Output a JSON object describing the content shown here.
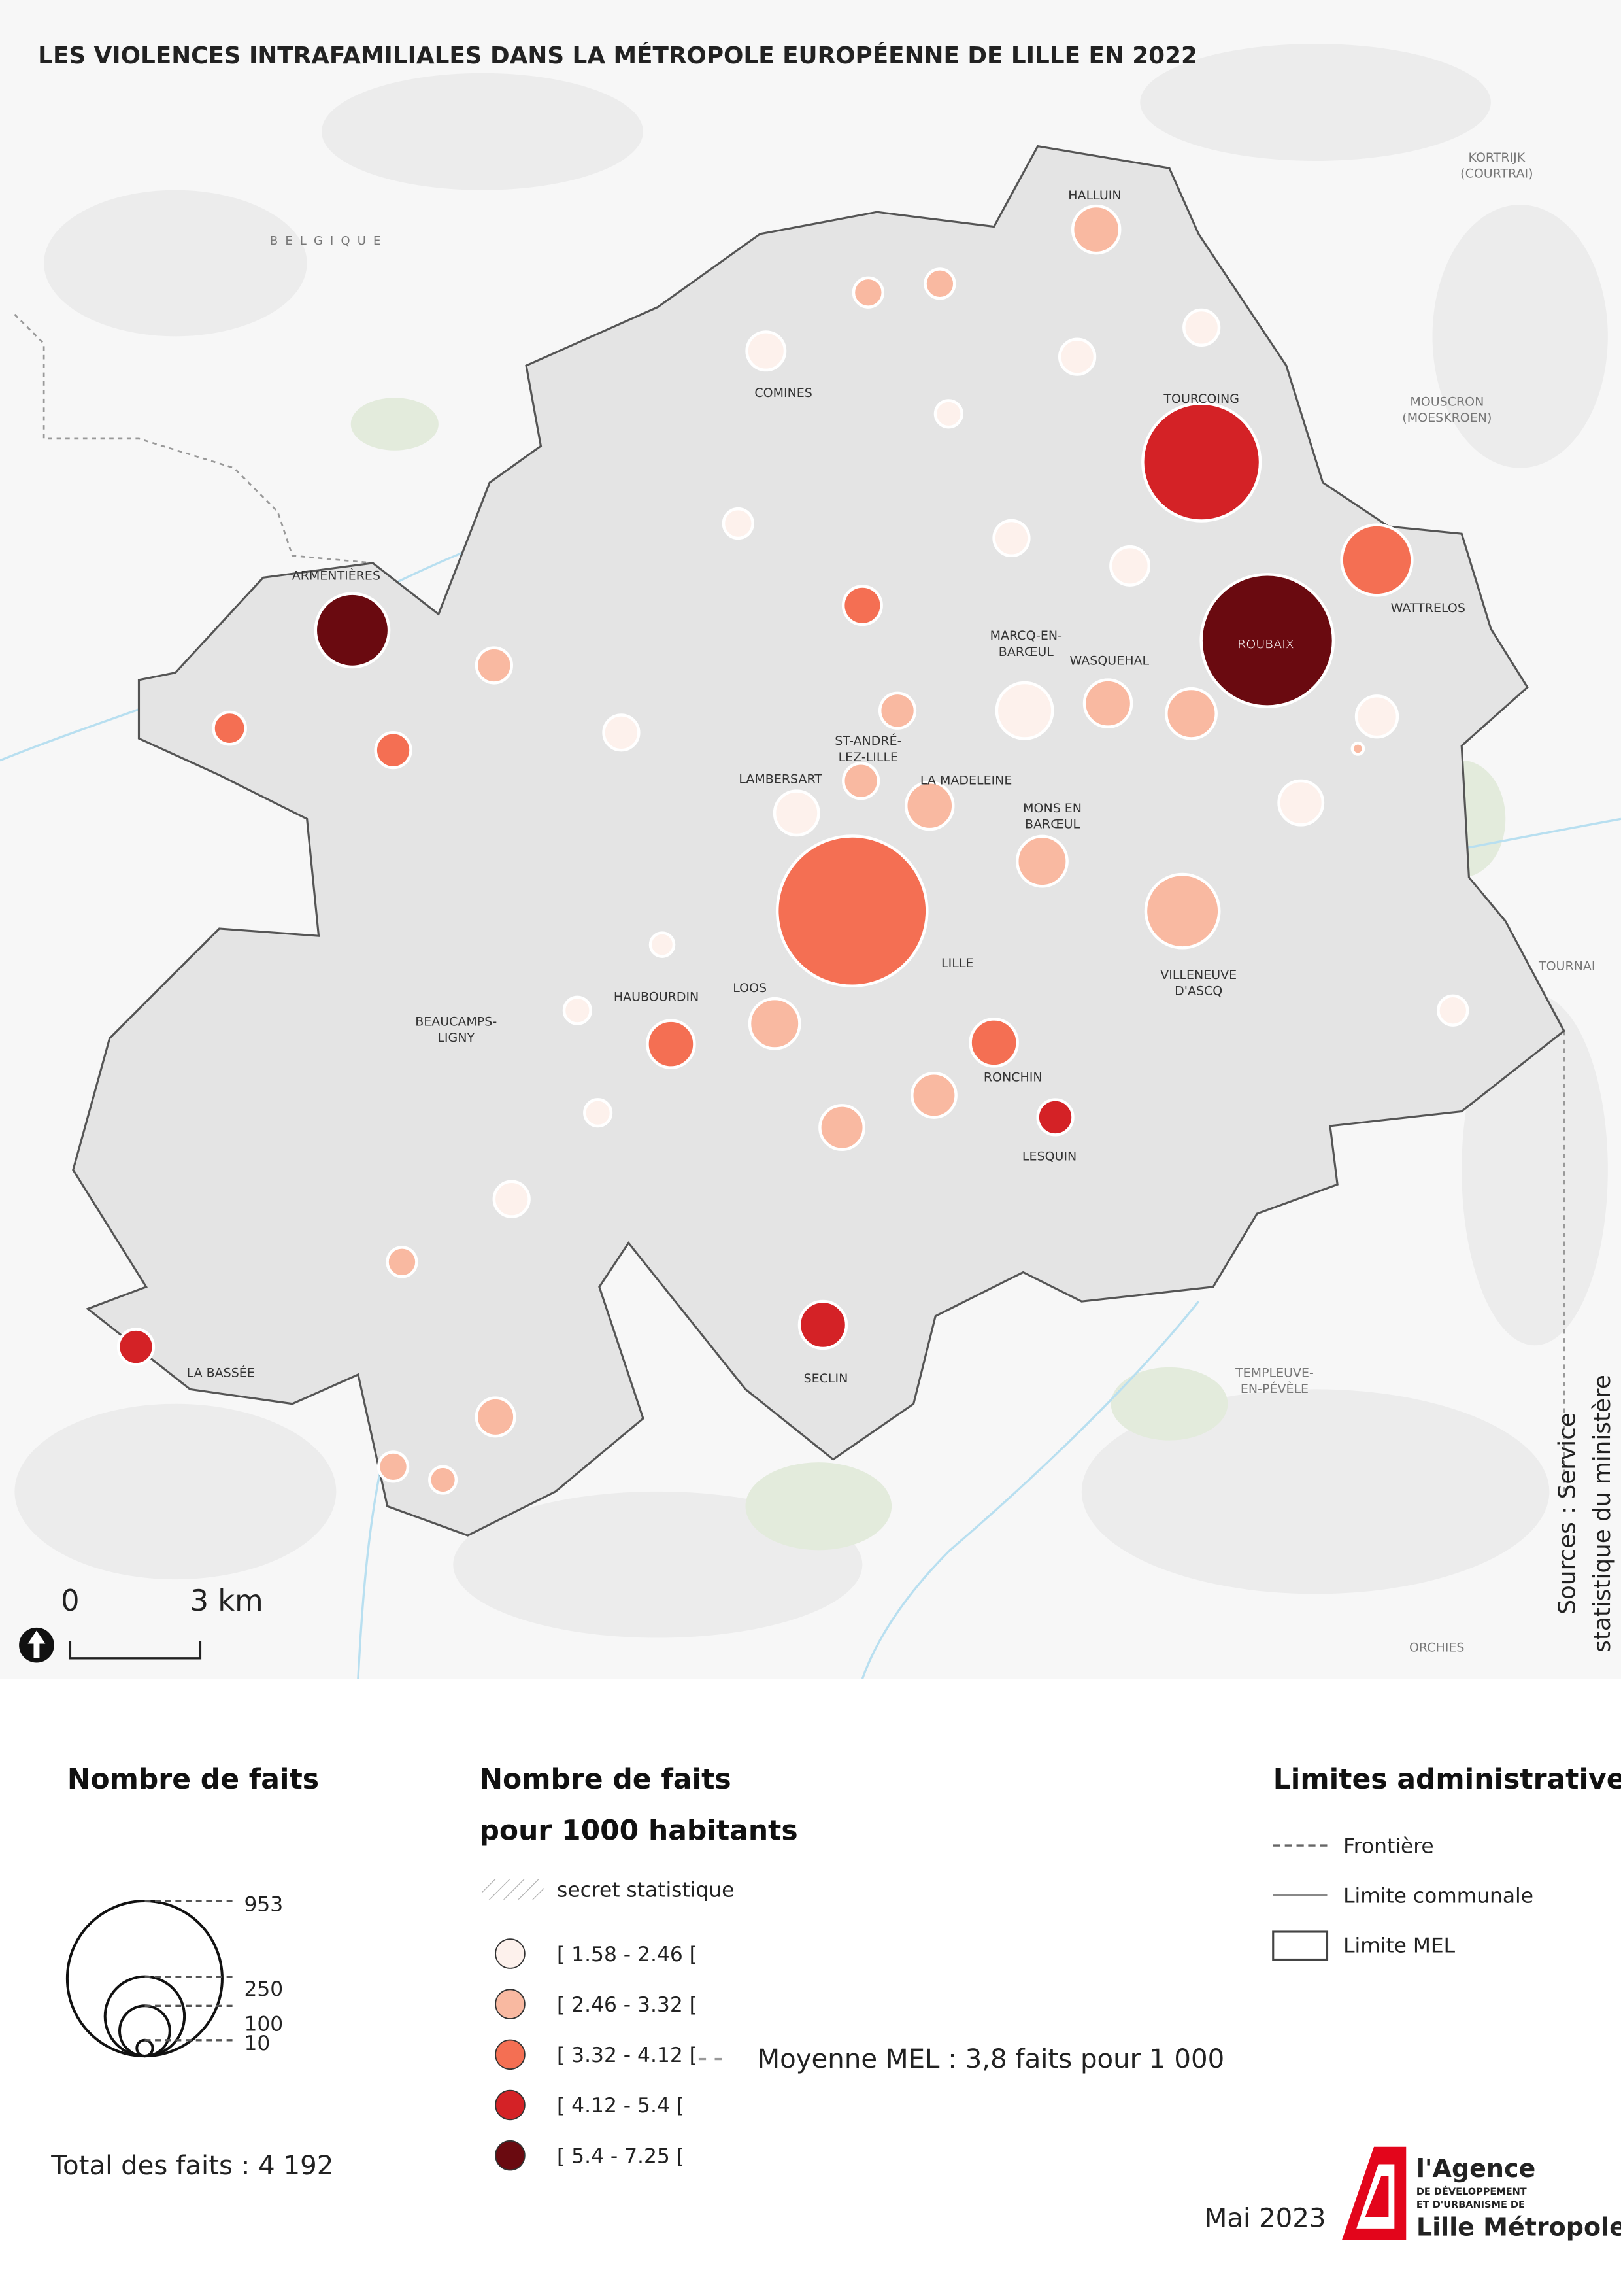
{
  "title": "LES VIOLENCES INTRAFAMILIALES DANS LA MÉTROPOLE EUROPÉENNE DE LILLE EN 2022",
  "places": [
    [
      "HALLUIN"
    ],
    [
      "COMINES"
    ],
    [
      "TOURCOING"
    ],
    [
      "WATTRELOS"
    ],
    [
      "ARMENTIÈRES"
    ],
    [
      "ROUBAIX"
    ],
    [
      "MARCQ-EN-",
      "BARŒUL"
    ],
    [
      "WASQUEHAL"
    ],
    [
      "ST-ANDRÉ-",
      "LEZ-LILLE"
    ],
    [
      "LAMBERSART"
    ],
    [
      "LA MADELEINE"
    ],
    [
      "MONS EN",
      "BARŒUL"
    ],
    [
      "LILLE"
    ],
    [
      "VILLENEUVE",
      "D'ASCQ"
    ],
    [
      "LOOS"
    ],
    [
      "HAUBOURDIN"
    ],
    [
      "BEAUCAMPS-",
      "LIGNY"
    ],
    [
      "RONCHIN"
    ],
    [
      "LESQUIN"
    ],
    [
      "SECLIN"
    ],
    [
      "LA BASSÉE"
    ],
    [
      "TEMPLEUVE-",
      "EN-PÉVÈLE"
    ],
    [
      "ORCHIES"
    ],
    [
      "TOURNAI"
    ],
    [
      "MOUSCRON",
      "(MOESKROEN)"
    ],
    [
      "KORTRIJK",
      "(COURTRAI)"
    ],
    [
      "BELGIQUE"
    ]
  ],
  "circles": [
    {
      "value": 88,
      "class": 1
    },
    {
      "value": 34,
      "class": 1
    },
    {
      "value": 34,
      "class": 1
    },
    {
      "value": 58,
      "class": 0
    },
    {
      "value": 49,
      "class": 0
    },
    {
      "value": 49,
      "class": 0
    },
    {
      "value": 28,
      "class": 0
    },
    {
      "value": 548,
      "class": 3
    },
    {
      "value": 34,
      "class": 0
    },
    {
      "value": 49,
      "class": 0
    },
    {
      "value": 58,
      "class": 0
    },
    {
      "value": 197,
      "class": 2
    },
    {
      "value": 214,
      "class": 4
    },
    {
      "value": 694,
      "class": 4
    },
    {
      "value": 58,
      "class": 2
    },
    {
      "value": 49,
      "class": 1
    },
    {
      "value": 41,
      "class": 2
    },
    {
      "value": 49,
      "class": 2
    },
    {
      "value": 49,
      "class": 0
    },
    {
      "value": 124,
      "class": 0
    },
    {
      "value": 88,
      "class": 1
    },
    {
      "value": 99,
      "class": 1
    },
    {
      "value": 49,
      "class": 1
    },
    {
      "value": 67,
      "class": 0
    },
    {
      "value": 5,
      "class": 1
    },
    {
      "value": 49,
      "class": 1
    },
    {
      "value": 77,
      "class": 0
    },
    {
      "value": 88,
      "class": 1
    },
    {
      "value": 77,
      "class": 0
    },
    {
      "value": 99,
      "class": 1
    },
    {
      "value": 891,
      "class": 2
    },
    {
      "value": 214,
      "class": 1
    },
    {
      "value": 22,
      "class": 0
    },
    {
      "value": 28,
      "class": 0
    },
    {
      "value": 99,
      "class": 1
    },
    {
      "value": 88,
      "class": 2
    },
    {
      "value": 88,
      "class": 2
    },
    {
      "value": 34,
      "class": 0
    },
    {
      "value": 77,
      "class": 1
    },
    {
      "value": 49,
      "class": 3
    },
    {
      "value": 77,
      "class": 1
    },
    {
      "value": 28,
      "class": 0
    },
    {
      "value": 49,
      "class": 0
    },
    {
      "value": 34,
      "class": 1
    },
    {
      "value": 88,
      "class": 3
    },
    {
      "value": 49,
      "class": 3
    },
    {
      "value": 58,
      "class": 1
    },
    {
      "value": 34,
      "class": 1
    },
    {
      "value": 28,
      "class": 1
    }
  ],
  "scale": {
    "start": "0",
    "end": "3 km"
  },
  "sources": [
    "Sources : Service",
    "statistique du ministère"
  ],
  "legend_size": {
    "title": "Nombre de faits",
    "values": [
      953,
      250,
      100,
      10
    ]
  },
  "legend_rate": {
    "title": [
      "Nombre de faits",
      "pour 1000 habitants"
    ],
    "secret": "secret statistique",
    "classes": [
      {
        "label": "[ 1.58 - 2.46 [",
        "color": "#fdf1ec"
      },
      {
        "label": "[ 2.46 - 3.32 [",
        "color": "#f9b9a1"
      },
      {
        "label": "[ 3.32 - 4.12 [",
        "color": "#f46f53"
      },
      {
        "label": "[ 4.12 - 5.4 [",
        "color": "#d42226"
      },
      {
        "label": "[ 5.4 - 7.25 [",
        "color": "#6a0a10"
      }
    ],
    "average": "Moyenne MEL : 3,8 faits pour 1 000"
  },
  "legend_limits": {
    "title": "Limites administratives",
    "items": [
      "Frontière",
      "Limite communale",
      "Limite MEL"
    ]
  },
  "total": "Total des faits : 4 192",
  "date": "Mai 2023",
  "logo": [
    "l'Agence",
    "DE DÉVELOPPEMENT",
    "ET D'URBANISME DE",
    "Lille Métropole"
  ]
}
